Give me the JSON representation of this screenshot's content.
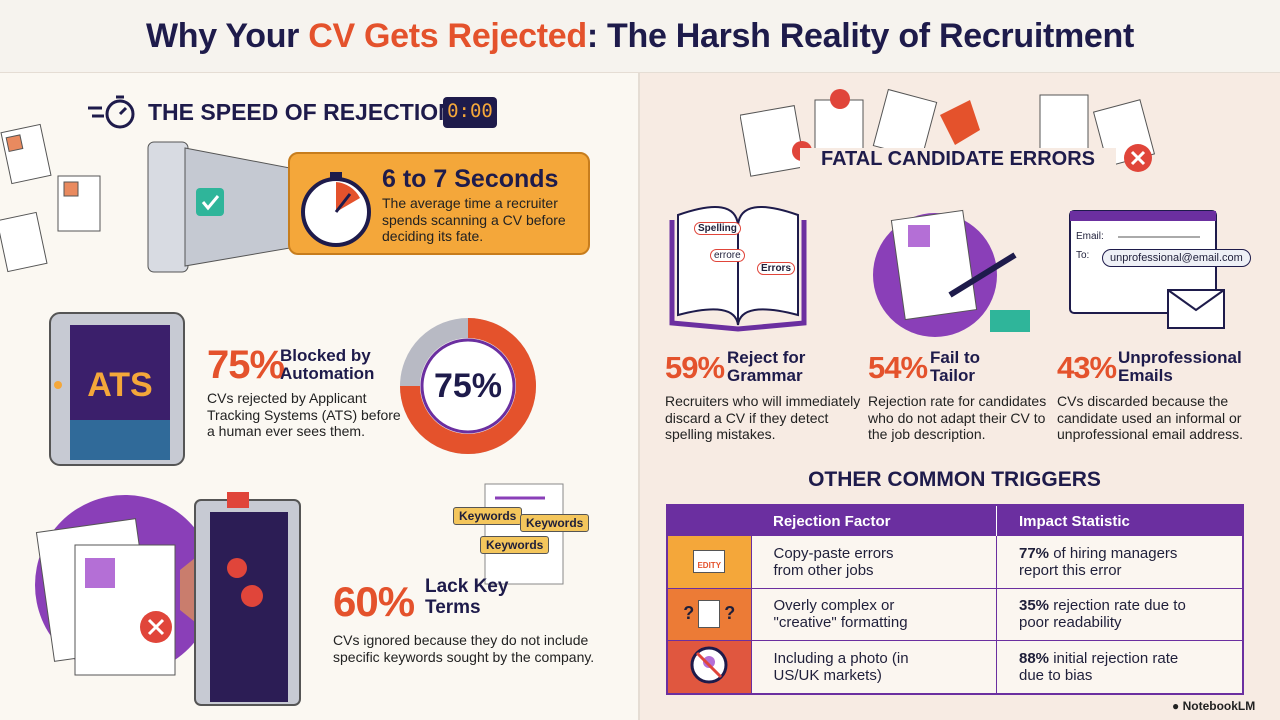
{
  "header": {
    "title_parts": [
      "Why Your ",
      "CV Gets Rejected",
      ": The Harsh Reality of Recruitment"
    ]
  },
  "speed": {
    "heading": "THE SPEED OF REJECTION",
    "timer": "0:00",
    "stat": "6 to 7 Seconds",
    "desc": "The average time a recruiter spends scanning a CV before deciding its fate."
  },
  "ats": {
    "badge": "ATS",
    "percent": "75%",
    "label": "Blocked by Automation",
    "desc": "CVs rejected by Applicant Tracking Systems (ATS) before a human ever sees them.",
    "donut": {
      "value": 75,
      "label": "75%"
    }
  },
  "keywords": {
    "tags": [
      "Keywords",
      "Keywords",
      "Keywords"
    ],
    "percent": "60%",
    "label": "Lack Key Terms",
    "desc": "CVs ignored because they do not include specific keywords sought by the company."
  },
  "errors": {
    "heading": "FATAL CANDIDATE ERRORS",
    "grammar_words": [
      "Spelling",
      "errore",
      "Errors"
    ],
    "email_fields": [
      "Email:",
      "To:"
    ],
    "email_address": "unprofessional@email.com",
    "items": [
      {
        "percent": "59%",
        "label": "Reject for Grammar",
        "desc": "Recruiters who will immediately discard a CV if they detect spelling mistakes."
      },
      {
        "percent": "54%",
        "label": "Fail to Tailor",
        "desc": "Rejection rate for candidates who do not adapt their CV to the job description."
      },
      {
        "percent": "43%",
        "label": "Unprofessional Emails",
        "desc": "CVs discarded because the candidate used an informal or unprofessional email address."
      }
    ]
  },
  "triggers": {
    "heading": "OTHER COMMON TRIGGERS",
    "columns": [
      "Rejection Factor",
      "Impact Statistic"
    ],
    "rows": [
      {
        "icon_text": "EDITY",
        "factor": "Copy-paste errors from other jobs",
        "stat_bold": "77%",
        "stat": " of hiring managers report this error"
      },
      {
        "icon_text": "?",
        "factor": "Overly complex or \"creative\" formatting",
        "stat_bold": "35%",
        "stat": " rejection rate due to poor readability"
      },
      {
        "icon_text": "",
        "factor": "Including a photo (in US/UK markets)",
        "stat_bold": "88%",
        "stat": " initial rejection rate due to bias"
      }
    ]
  },
  "footer": {
    "brand": "NotebookLM"
  }
}
